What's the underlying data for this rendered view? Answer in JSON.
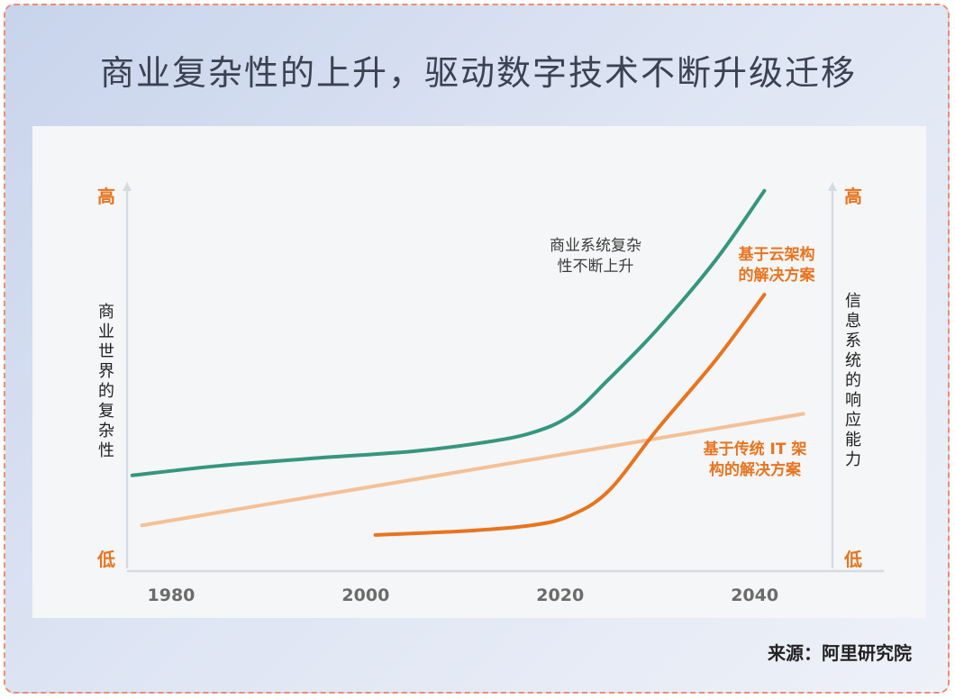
{
  "title": "商业复杂性的上升，驱动数字技术不断升级迁移",
  "source": "来源：阿里研究院",
  "colors": {
    "green": "#35967f",
    "orange": "#e8741f",
    "peach": "#f4c095",
    "axis": "#d5dbe2",
    "level_label": "#e8741f",
    "background_panel": "#f5f6f7"
  },
  "chart_data": {
    "type": "line",
    "xlim": [
      1975,
      2048
    ],
    "ylim": [
      0,
      100
    ],
    "xticks": [
      "1980",
      "2000",
      "2020",
      "2040"
    ],
    "left_axis": {
      "label": "商业世界的复杂性",
      "high": "高",
      "low": "低"
    },
    "right_axis": {
      "label": "信息系统的响应能力",
      "high": "高",
      "low": "低"
    },
    "series": [
      {
        "name": "商业系统复杂性不断上升",
        "color": "#35967f",
        "x": [
          1976,
          1985,
          1995,
          2005,
          2012,
          2017,
          2021,
          2025,
          2030,
          2036,
          2041
        ],
        "y": [
          30,
          32.5,
          34.5,
          36.3,
          38.5,
          41,
          45.5,
          55,
          68,
          86,
          104
        ]
      },
      {
        "name": "基于传统 IT 架构的解决方案",
        "color": "#f4c095",
        "x": [
          1977,
          2045
        ],
        "y": [
          17,
          46
        ]
      },
      {
        "name": "基于云架构的解决方案",
        "color": "#e8741f",
        "x": [
          2001,
          2010,
          2017,
          2021,
          2025,
          2030,
          2036,
          2041
        ],
        "y": [
          14.5,
          15.5,
          17,
          19.5,
          26,
          42,
          60,
          77
        ]
      }
    ],
    "annotations": [
      {
        "text_lines": [
          "商业系统复杂",
          "性不断上升"
        ],
        "color": "#3b3b3b"
      },
      {
        "text_lines": [
          "基于云架构",
          "的解决方案"
        ],
        "color": "#e8741f"
      },
      {
        "text_lines": [
          "基于传统 IT 架",
          "构的解决方案"
        ],
        "color": "#e8741f"
      }
    ]
  }
}
